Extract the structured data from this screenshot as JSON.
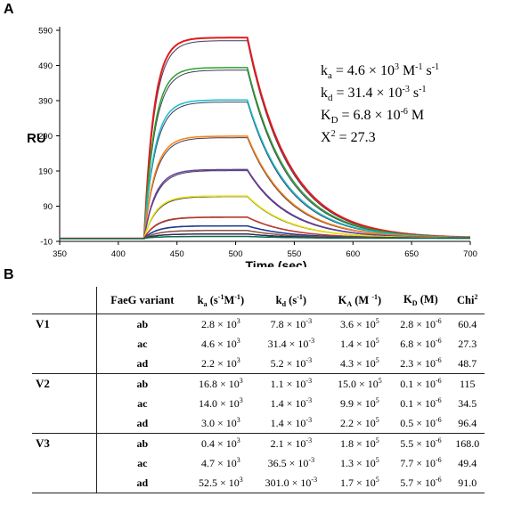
{
  "panel_labels": {
    "a": "A",
    "b": "B"
  },
  "chart_data": {
    "type": "line",
    "ylabel": "RU",
    "xlabel": "Time (sec)",
    "xlim": [
      350,
      700
    ],
    "ylim": [
      -10,
      590
    ],
    "x_ticks": [
      "350",
      "400",
      "450",
      "500",
      "550",
      "600",
      "650",
      "700"
    ],
    "y_ticks": [
      "-10",
      "90",
      "190",
      "290",
      "390",
      "490",
      "590"
    ],
    "grid": false,
    "injection_start": 422,
    "injection_end": 510,
    "series": [
      {
        "plateau": 570,
        "color": "#e41a1c"
      },
      {
        "plateau": 485,
        "color": "#2ca02c"
      },
      {
        "plateau": 393,
        "color": "#17becf"
      },
      {
        "plateau": 290,
        "color": "#ff7f0e"
      },
      {
        "plateau": 195,
        "color": "#6a3d9a"
      },
      {
        "plateau": 120,
        "color": "#e6e600"
      },
      {
        "plateau": 60,
        "color": "#c0392b"
      },
      {
        "plateau": 35,
        "color": "#1f3a93"
      },
      {
        "plateau": 22,
        "color": "#8c564b"
      },
      {
        "plateau": 12,
        "color": "#2c2c54"
      },
      {
        "plateau": 5,
        "color": "#0b6e4f"
      }
    ],
    "annotation": {
      "ka": "k_a = 4.6 × 10^3 M^-1 s^-1",
      "kd": "k_d = 31.4 × 10^-3 s^-1",
      "KD": "K_D = 6.8 × 10^-6 M",
      "chi2": "X^2 = 27.3"
    }
  },
  "annotation_parts": {
    "ka_prefix": "k",
    "ka_sub": "a",
    "ka_eq": " = 4.6 × 10",
    "ka_exp": "3",
    "ka_unit": " M",
    "ka_unit_exp": "-1",
    "ka_tail": " s",
    "ka_tail_exp": "-1",
    "kd_prefix": "k",
    "kd_sub": "d",
    "kd_eq": " = 31.4 × 10",
    "kd_exp": "-3",
    "kd_unit": " s",
    "kd_unit_exp": "-1",
    "KD_prefix": "K",
    "KD_sub": "D",
    "KD_eq": " = 6.8 × 10",
    "KD_exp": "-6",
    "KD_unit": " M",
    "chi_prefix": "X",
    "chi_exp": "2",
    "chi_eq": " = 27.3"
  },
  "table": {
    "headers": {
      "variant": "FaeG variant",
      "ka_base": "k",
      "ka_sub": "a",
      "ka_unit": " (s",
      "ka_u1": "-1",
      "ka_mid": "M",
      "ka_u2": "-1",
      "ka_close": ")",
      "kd_base": "k",
      "kd_sub": "d",
      "kd_unit": " (s",
      "kd_u1": "-1",
      "kd_close": ")",
      "KA_base": "K",
      "KA_sub": "A",
      "KA_unit": " (M ",
      "KA_u1": "-1",
      "KA_close": ")",
      "KD_base": "K",
      "KD_sub": "D",
      "KD_unit": " (M)",
      "chi_base": "Chi",
      "chi_exp": "2"
    },
    "groups": [
      {
        "name": "V1",
        "rows": [
          {
            "variant": "ab",
            "ka": [
              "2.8 × 10",
              "3"
            ],
            "kd": [
              "7.8 × 10",
              "-3"
            ],
            "KA": [
              "3.6 × 10",
              "5"
            ],
            "KD": [
              "2.8 × 10",
              "-6"
            ],
            "chi": "60.4"
          },
          {
            "variant": "ac",
            "ka": [
              "4.6 × 10",
              "3"
            ],
            "kd": [
              "31.4 × 10",
              "-3"
            ],
            "KA": [
              "1.4 × 10",
              "5"
            ],
            "KD": [
              "6.8 × 10",
              "-6"
            ],
            "chi": "27.3"
          },
          {
            "variant": "ad",
            "ka": [
              "2.2 × 10",
              "3"
            ],
            "kd": [
              "5.2 × 10",
              "-3"
            ],
            "KA": [
              "4.3 × 10",
              "5"
            ],
            "KD": [
              "2.3 × 10",
              "-6"
            ],
            "chi": "48.7"
          }
        ]
      },
      {
        "name": "V2",
        "rows": [
          {
            "variant": "ab",
            "ka": [
              "16.8 × 10",
              "3"
            ],
            "kd": [
              "1.1 × 10",
              "-3"
            ],
            "KA": [
              "15.0 × 10",
              "5"
            ],
            "KD": [
              "0.1 × 10",
              "-6"
            ],
            "chi": "115"
          },
          {
            "variant": "ac",
            "ka": [
              "14.0 × 10",
              "3"
            ],
            "kd": [
              "1.4 × 10",
              "-3"
            ],
            "KA": [
              "9.9 × 10",
              "5"
            ],
            "KD": [
              "0.1 × 10",
              "-6"
            ],
            "chi": "34.5"
          },
          {
            "variant": "ad",
            "ka": [
              "3.0 × 10",
              "3"
            ],
            "kd": [
              "1.4 × 10",
              "-3"
            ],
            "KA": [
              "2.2 × 10",
              "5"
            ],
            "KD": [
              "0.5 × 10",
              "-6"
            ],
            "chi": "96.4"
          }
        ]
      },
      {
        "name": "V3",
        "rows": [
          {
            "variant": "ab",
            "ka": [
              "0.4 × 10",
              "3"
            ],
            "kd": [
              "2.1 × 10",
              "-3"
            ],
            "KA": [
              "1.8 × 10",
              "5"
            ],
            "KD": [
              "5.5 × 10",
              "-6"
            ],
            "chi": "168.0"
          },
          {
            "variant": "ac",
            "ka": [
              "4.7 × 10",
              "3"
            ],
            "kd": [
              "36.5 × 10",
              "-3"
            ],
            "KA": [
              "1.3 × 10",
              "5"
            ],
            "KD": [
              "7.7 × 10",
              "-6"
            ],
            "chi": "49.4"
          },
          {
            "variant": "ad",
            "ka": [
              "52.5 × 10",
              "3"
            ],
            "kd": [
              "301.0 × 10",
              "-3"
            ],
            "KA": [
              "1.7 × 10",
              "5"
            ],
            "KD": [
              "5.7 × 10",
              "-6"
            ],
            "chi": "91.0"
          }
        ]
      }
    ]
  }
}
